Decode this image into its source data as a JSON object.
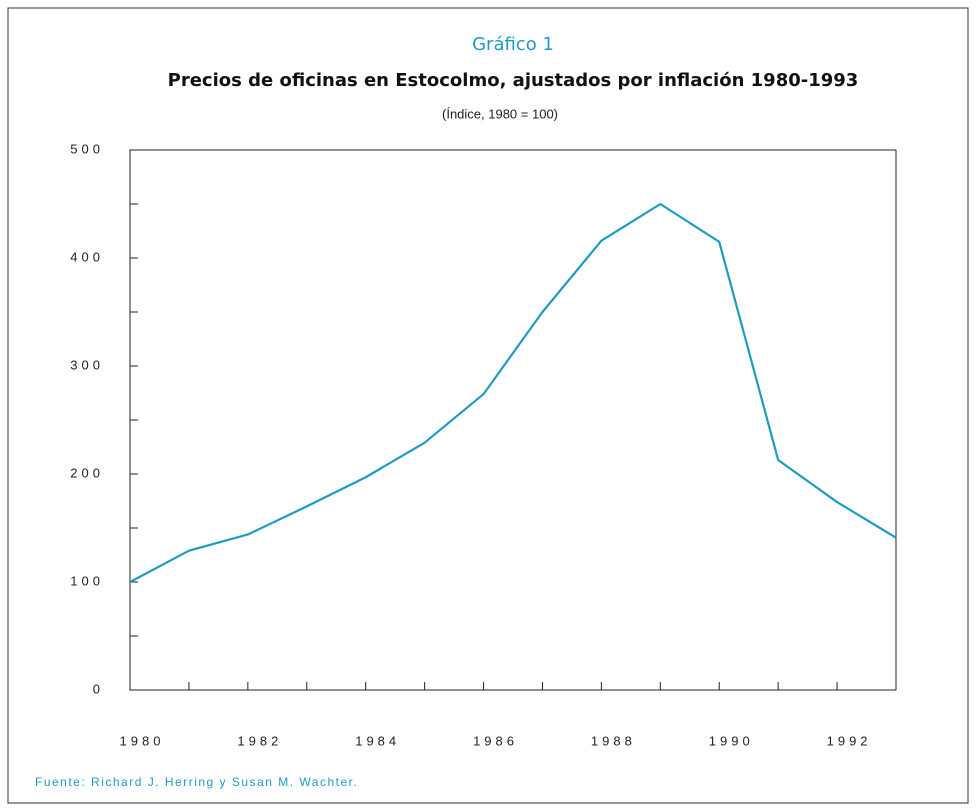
{
  "chart_data": {
    "type": "line",
    "kicker": "Gráfico 1",
    "title": "Precios de oficinas en Estocolmo, ajustados por inflación 1980-1993",
    "subtitle": "(Índice, 1980 = 100)",
    "source": "Fuente: Richard J. Herring y Susan M. Wachter.",
    "x": [
      1980,
      1981,
      1982,
      1983,
      1984,
      1985,
      1986,
      1987,
      1988,
      1989,
      1990,
      1991,
      1992,
      1993
    ],
    "series": [
      {
        "name": "Precios de oficinas",
        "color": "#1f9bc2",
        "values": [
          100,
          129,
          144,
          170,
          197,
          229,
          274,
          350,
          416,
          450,
          415,
          213,
          174,
          141
        ]
      }
    ],
    "xlim": [
      1980,
      1993
    ],
    "xticks": [
      1980,
      1982,
      1984,
      1986,
      1988,
      1990,
      1992
    ],
    "xminorticks": [
      1981,
      1983,
      1985,
      1987,
      1989,
      1991,
      1993
    ],
    "ylim": [
      0,
      500
    ],
    "yticks": [
      0,
      100,
      200,
      300,
      400,
      500
    ],
    "yminorticks": [
      50,
      150,
      250,
      350,
      450
    ],
    "grid": false
  }
}
